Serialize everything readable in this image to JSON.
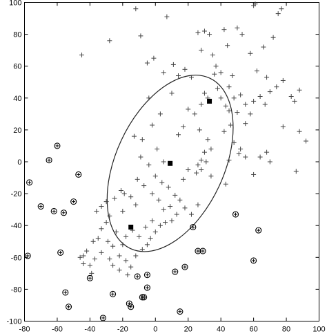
{
  "chart_data": {
    "type": "scatter",
    "title": "",
    "xlabel": "",
    "ylabel": "",
    "xlim": [
      -80,
      100
    ],
    "ylim": [
      -100,
      100
    ],
    "xticks": [
      -80,
      -60,
      -40,
      -20,
      0,
      20,
      40,
      60,
      80,
      100
    ],
    "yticks": [
      -100,
      -80,
      -60,
      -40,
      -20,
      0,
      20,
      40,
      60,
      80,
      100
    ],
    "grid": false,
    "legend": "none",
    "ellipse": {
      "center": [
        9,
        -1
      ],
      "rx": 33,
      "ry": 59,
      "angle_deg": 25
    },
    "series": [
      {
        "marker": "plus",
        "points": [
          [
            -12,
            96
          ],
          [
            -28,
            76
          ],
          [
            -45,
            67
          ],
          [
            7,
            91
          ],
          [
            -9,
            79
          ],
          [
            -5,
            62
          ],
          [
            -1,
            65
          ],
          [
            5,
            56
          ],
          [
            11,
            61
          ],
          [
            14,
            54
          ],
          [
            18,
            58
          ],
          [
            22,
            53
          ],
          [
            26,
            81
          ],
          [
            28,
            70
          ],
          [
            30,
            82
          ],
          [
            33,
            80
          ],
          [
            35,
            67
          ],
          [
            37,
            60
          ],
          [
            36,
            55
          ],
          [
            42,
            83
          ],
          [
            44,
            73
          ],
          [
            47,
            54
          ],
          [
            50,
            84
          ],
          [
            53,
            80
          ],
          [
            58,
            68
          ],
          [
            60,
            98
          ],
          [
            61,
            99
          ],
          [
            66,
            72
          ],
          [
            72,
            78
          ],
          [
            75,
            93
          ],
          [
            77,
            96
          ],
          [
            62,
            57
          ],
          [
            68,
            53
          ],
          [
            70,
            44
          ],
          [
            74,
            47
          ],
          [
            78,
            51
          ],
          [
            83,
            41
          ],
          [
            88,
            45
          ],
          [
            85,
            38
          ],
          [
            78,
            22
          ],
          [
            88,
            19
          ],
          [
            92,
            13
          ],
          [
            40,
            56
          ],
          [
            45,
            47
          ],
          [
            48,
            40
          ],
          [
            52,
            42
          ],
          [
            55,
            36
          ],
          [
            60,
            38
          ],
          [
            64,
            41
          ],
          [
            67,
            36
          ],
          [
            58,
            30
          ],
          [
            40,
            40
          ],
          [
            43,
            35
          ],
          [
            45,
            32
          ],
          [
            50,
            31
          ],
          [
            55,
            24
          ],
          [
            42,
            19
          ],
          [
            46,
            23
          ],
          [
            48,
            12
          ],
          [
            52,
            8
          ],
          [
            51,
            5
          ],
          [
            55,
            3
          ],
          [
            45,
            1
          ],
          [
            43,
            -14
          ],
          [
            38,
            46
          ],
          [
            30,
            43
          ],
          [
            32,
            40
          ],
          [
            28,
            36
          ],
          [
            24,
            30
          ],
          [
            20,
            33
          ],
          [
            27,
            20
          ],
          [
            32,
            14
          ],
          [
            34,
            8
          ],
          [
            31,
            0
          ],
          [
            28,
            -5
          ],
          [
            -13,
            16
          ],
          [
            -9,
            3
          ],
          [
            -2,
            23
          ],
          [
            -8,
            14
          ],
          [
            -4,
            -2
          ],
          [
            1,
            8
          ],
          [
            5,
            0
          ],
          [
            -4,
            40
          ],
          [
            3,
            30
          ],
          [
            10,
            43
          ],
          [
            14,
            17
          ],
          [
            17,
            22
          ],
          [
            -21,
            -18
          ],
          [
            -19,
            -20
          ],
          [
            -15,
            -22
          ],
          [
            -12,
            -27
          ],
          [
            -20,
            -31
          ],
          [
            -28,
            -34
          ],
          [
            -24,
            -44
          ],
          [
            -30,
            -38
          ],
          [
            -33,
            -42
          ],
          [
            -35,
            -48
          ],
          [
            -38,
            -50
          ],
          [
            -42,
            -56
          ],
          [
            -44,
            -59
          ],
          [
            -40,
            -65
          ],
          [
            -37,
            -61
          ],
          [
            -33,
            -57
          ],
          [
            -28,
            -61
          ],
          [
            -26,
            -65
          ],
          [
            -22,
            -59
          ],
          [
            -18,
            -62
          ],
          [
            -15,
            -66
          ],
          [
            -12,
            -59
          ],
          [
            -8,
            -55
          ],
          [
            -5,
            -52
          ],
          [
            -3,
            -48
          ],
          [
            0,
            -44
          ],
          [
            3,
            -40
          ],
          [
            6,
            -38
          ],
          [
            10,
            -37
          ],
          [
            13,
            -33
          ],
          [
            9,
            -28
          ],
          [
            5,
            -30
          ],
          [
            2,
            -24
          ],
          [
            -2,
            -20
          ],
          [
            -7,
            -15
          ],
          [
            -11,
            -11
          ],
          [
            0,
            -9
          ],
          [
            4,
            -13
          ],
          [
            8,
            -16
          ],
          [
            12,
            -21
          ],
          [
            15,
            -24
          ],
          [
            18,
            -29
          ],
          [
            22,
            -33
          ],
          [
            -26,
            -53
          ],
          [
            -29,
            -50
          ],
          [
            -18,
            -47
          ],
          [
            -20,
            -52
          ],
          [
            -14,
            -43
          ],
          [
            -10,
            -47
          ],
          [
            -6,
            -41
          ],
          [
            -2,
            -37
          ],
          [
            17,
            -11
          ],
          [
            20,
            -5
          ],
          [
            25,
            -7
          ],
          [
            26,
            -2
          ],
          [
            28,
            1
          ],
          [
            30,
            6
          ],
          [
            34,
            -9
          ],
          [
            26,
            -27
          ],
          [
            -33,
            -28
          ],
          [
            -36,
            -31
          ],
          [
            -30,
            -25
          ],
          [
            -25,
            -23
          ],
          [
            -46,
            -60
          ],
          [
            -44,
            -64
          ],
          [
            -22,
            -68
          ],
          [
            -17,
            -71
          ],
          [
            -39,
            -70
          ],
          [
            68,
            6
          ],
          [
            70,
            0
          ],
          [
            86,
            -6
          ],
          [
            64,
            3
          ],
          [
            60,
            -8
          ]
        ]
      },
      {
        "marker": "circled-plus",
        "points": [
          [
            -78,
            -59
          ],
          [
            -77,
            -13
          ],
          [
            -65,
            1
          ],
          [
            -60,
            10
          ],
          [
            -62,
            -31
          ],
          [
            -56,
            -32
          ],
          [
            -58,
            -57
          ],
          [
            -50,
            -25
          ],
          [
            -47,
            -8
          ],
          [
            -70,
            -28
          ],
          [
            -55,
            -82
          ],
          [
            -53,
            -91
          ],
          [
            -40,
            -73
          ],
          [
            -32,
            -98
          ],
          [
            -26,
            -83
          ],
          [
            -16,
            -89
          ],
          [
            -15,
            -91
          ],
          [
            -8,
            -85
          ],
          [
            -7,
            -85
          ],
          [
            -5,
            -79
          ],
          [
            -11,
            -72
          ],
          [
            -5,
            -71
          ],
          [
            12,
            -69
          ],
          [
            15,
            -94
          ],
          [
            18,
            -66
          ],
          [
            26,
            -56
          ],
          [
            29,
            -56
          ],
          [
            23,
            -41
          ],
          [
            49,
            -33
          ],
          [
            63,
            -43
          ],
          [
            60,
            -62
          ]
        ]
      },
      {
        "marker": "square",
        "points": [
          [
            33,
            38
          ],
          [
            9,
            -1
          ],
          [
            -15,
            -41
          ]
        ]
      }
    ]
  }
}
